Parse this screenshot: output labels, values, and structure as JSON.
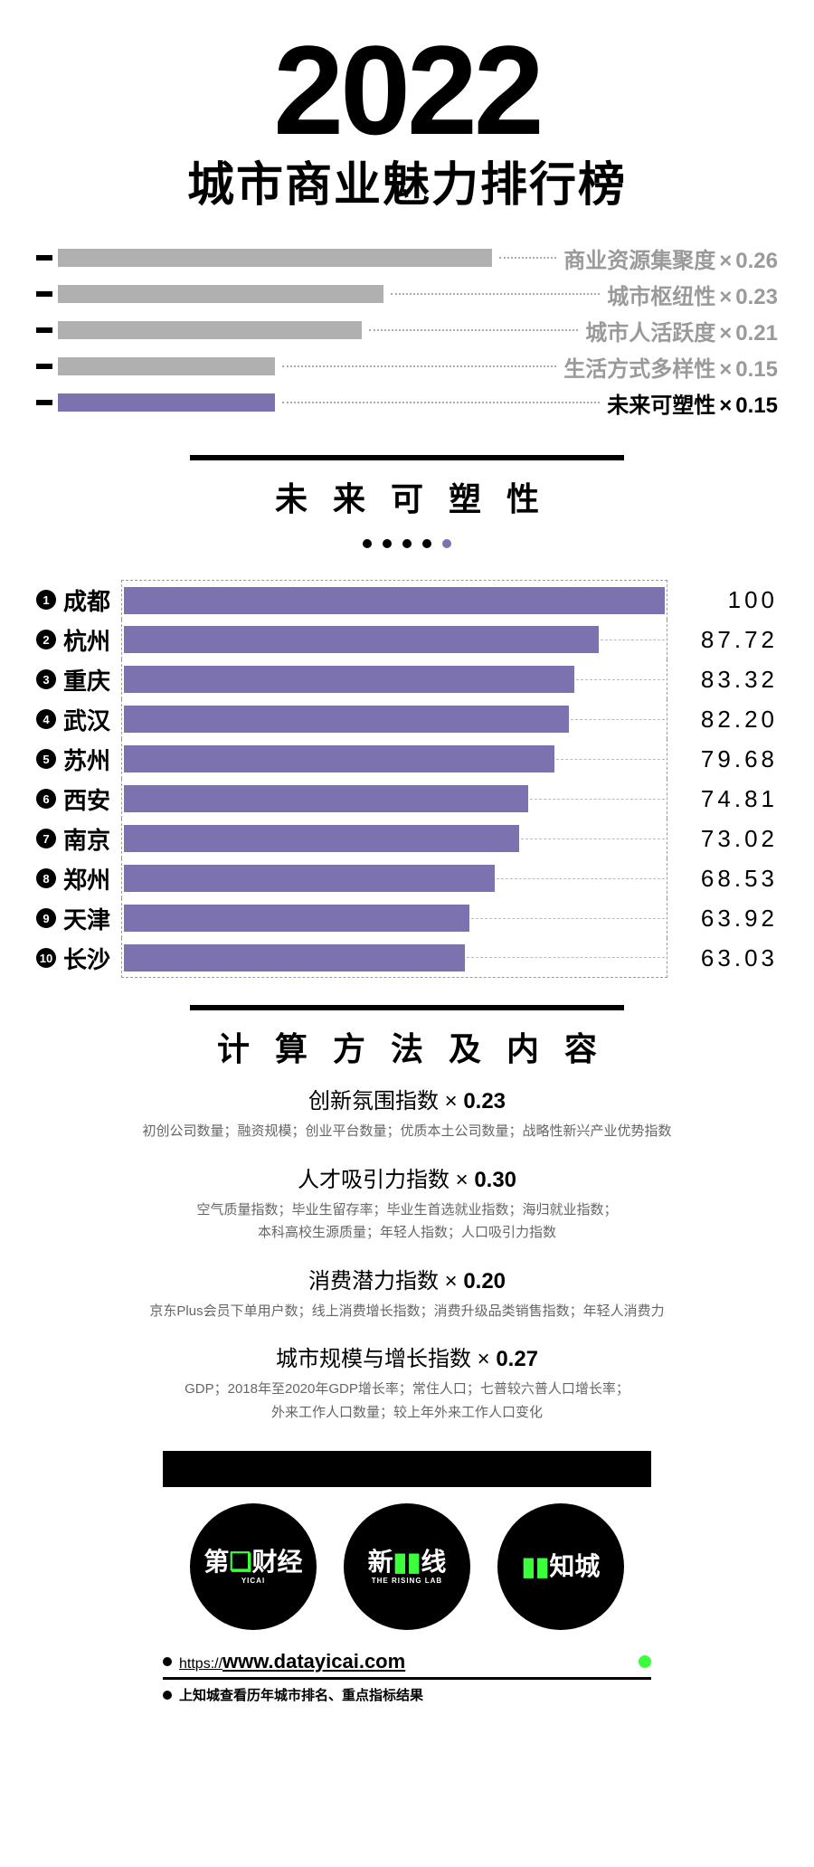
{
  "colors": {
    "purple": "#7d72b0",
    "grey_bar": "#b0b0b0",
    "grey_text": "#9a9a9a",
    "green": "#3cff3c"
  },
  "header": {
    "year": "2022",
    "title": "城市商业魅力排行榜"
  },
  "weights": {
    "bar_span": 480,
    "label_fontsize": 24,
    "items": [
      {
        "label": "商业资源集聚度",
        "value": "0.26",
        "width_pct": 100,
        "active": false
      },
      {
        "label": "城市枢纽性",
        "value": "0.23",
        "width_pct": 75,
        "active": false
      },
      {
        "label": "城市人活跃度",
        "value": "0.21",
        "width_pct": 70,
        "active": false
      },
      {
        "label": "生活方式多样性",
        "value": "0.15",
        "width_pct": 50,
        "active": false
      },
      {
        "label": "未来可塑性",
        "value": "0.15",
        "width_pct": 50,
        "active": true
      }
    ]
  },
  "section_title": "未来可塑性",
  "section_bar_width": 480,
  "dots": {
    "count": 5,
    "active_index": 4
  },
  "ranking": {
    "max": 100,
    "bar_color": "#7d72b0",
    "items": [
      {
        "rank": 1,
        "city": "成都",
        "value": 100.0,
        "display": "100"
      },
      {
        "rank": 2,
        "city": "杭州",
        "value": 87.72,
        "display": "87.72"
      },
      {
        "rank": 3,
        "city": "重庆",
        "value": 83.32,
        "display": "83.32"
      },
      {
        "rank": 4,
        "city": "武汉",
        "value": 82.2,
        "display": "82.20"
      },
      {
        "rank": 5,
        "city": "苏州",
        "value": 79.68,
        "display": "79.68"
      },
      {
        "rank": 6,
        "city": "西安",
        "value": 74.81,
        "display": "74.81"
      },
      {
        "rank": 7,
        "city": "南京",
        "value": 73.02,
        "display": "73.02"
      },
      {
        "rank": 8,
        "city": "郑州",
        "value": 68.53,
        "display": "68.53"
      },
      {
        "rank": 9,
        "city": "天津",
        "value": 63.92,
        "display": "63.92"
      },
      {
        "rank": 10,
        "city": "长沙",
        "value": 63.03,
        "display": "63.03"
      }
    ]
  },
  "method_title": "计算方法及内容",
  "methods": [
    {
      "name": "创新氛围指数",
      "weight": "0.23",
      "desc": "初创公司数量；融资规模；创业平台数量；优质本土公司数量；战略性新兴产业优势指数"
    },
    {
      "name": "人才吸引力指数",
      "weight": "0.30",
      "desc": "空气质量指数；毕业生留存率；毕业生首选就业指数；海归就业指数；\n本科高校生源质量；年轻人指数；人口吸引力指数"
    },
    {
      "name": "消费潜力指数",
      "weight": "0.20",
      "desc": "京东Plus会员下单用户数；线上消费增长指数；消费升级品类销售指数；年轻人消费力"
    },
    {
      "name": "城市规模与增长指数",
      "weight": "0.27",
      "desc": "GDP；2018年至2020年GDP增长率；常住人口；七普较六普人口增长率；\n外来工作人口数量；较上年外来工作人口变化"
    }
  ],
  "logos": [
    {
      "big": "第❏财经",
      "sub": "YICAI",
      "accent": "#3cff3c"
    },
    {
      "big": "新▮▮线",
      "sub": "THE RISING LAB",
      "accent": "#3cff3c"
    },
    {
      "big": "▮▮知城",
      "sub": "",
      "accent": "#3cff3c"
    }
  ],
  "footer": {
    "url_prefix": "https://",
    "url_bold": "www.datayicai.com",
    "note": "上知城查看历年城市排名、重点指标结果"
  }
}
